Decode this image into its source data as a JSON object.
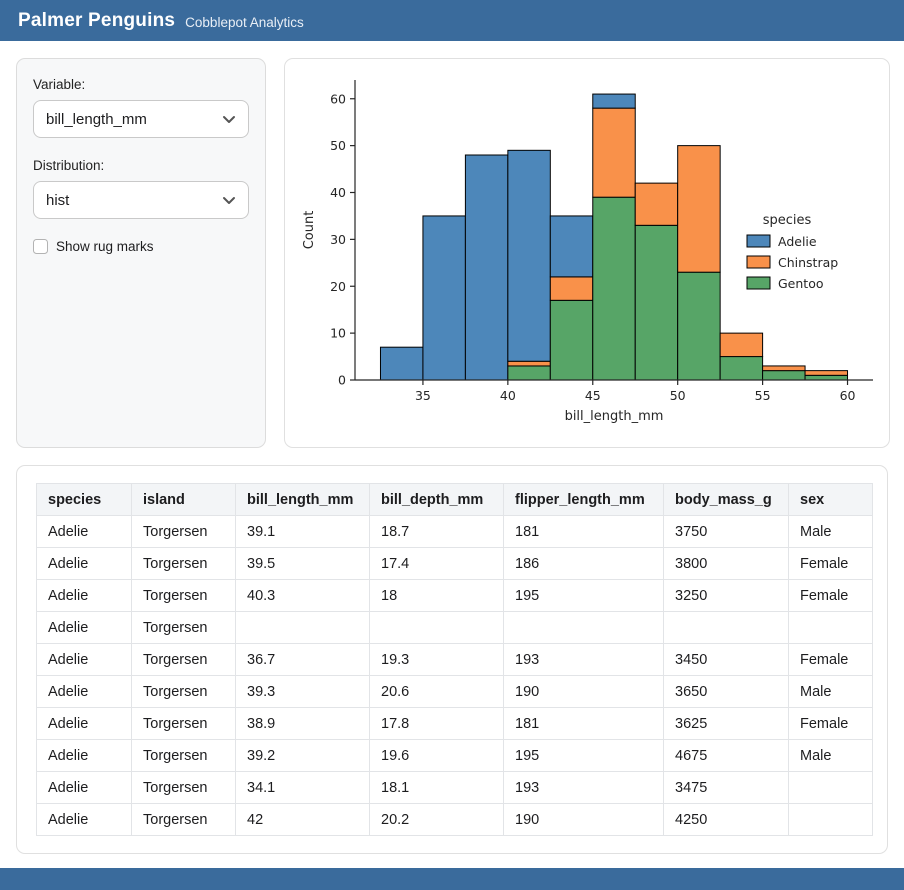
{
  "header": {
    "title": "Palmer Penguins",
    "subtitle": "Cobblepot Analytics"
  },
  "controls": {
    "variable_label": "Variable:",
    "variable_value": "bill_length_mm",
    "distribution_label": "Distribution:",
    "distribution_value": "hist",
    "rug_checkbox_label": "Show rug marks",
    "rug_checked": false
  },
  "chart_data": {
    "type": "bar",
    "subtype": "stacked-histogram",
    "xlabel": "bill_length_mm",
    "ylabel": "Count",
    "legend_title": "species",
    "legend_position": "right-inside",
    "bin_edges": [
      32.5,
      35,
      37.5,
      40,
      42.5,
      45,
      47.5,
      50,
      52.5,
      55,
      57.5,
      60
    ],
    "series": [
      {
        "name": "Adelie",
        "color": "#4d87ba",
        "values": [
          7,
          35,
          48,
          45,
          13,
          3,
          0,
          0,
          0,
          0,
          0
        ]
      },
      {
        "name": "Chinstrap",
        "color": "#f9914a",
        "values": [
          0,
          0,
          0,
          1,
          5,
          19,
          9,
          27,
          5,
          1,
          1
        ]
      },
      {
        "name": "Gentoo",
        "color": "#57a567",
        "values": [
          0,
          0,
          0,
          3,
          17,
          39,
          33,
          23,
          5,
          2,
          1
        ]
      }
    ],
    "stack_order": [
      "Gentoo",
      "Chinstrap",
      "Adelie"
    ],
    "x_ticks": [
      35,
      40,
      45,
      50,
      55,
      60
    ],
    "y_ticks": [
      0,
      10,
      20,
      30,
      40,
      50,
      60
    ],
    "xlim": [
      31,
      61.5
    ],
    "ylim": [
      0,
      64
    ],
    "bar_edge_color": "#000000",
    "grid": false
  },
  "table": {
    "columns": [
      "species",
      "island",
      "bill_length_mm",
      "bill_depth_mm",
      "flipper_length_mm",
      "body_mass_g",
      "sex"
    ],
    "rows": [
      [
        "Adelie",
        "Torgersen",
        "39.1",
        "18.7",
        "181",
        "3750",
        "Male"
      ],
      [
        "Adelie",
        "Torgersen",
        "39.5",
        "17.4",
        "186",
        "3800",
        "Female"
      ],
      [
        "Adelie",
        "Torgersen",
        "40.3",
        "18",
        "195",
        "3250",
        "Female"
      ],
      [
        "Adelie",
        "Torgersen",
        "",
        "",
        "",
        "",
        ""
      ],
      [
        "Adelie",
        "Torgersen",
        "36.7",
        "19.3",
        "193",
        "3450",
        "Female"
      ],
      [
        "Adelie",
        "Torgersen",
        "39.3",
        "20.6",
        "190",
        "3650",
        "Male"
      ],
      [
        "Adelie",
        "Torgersen",
        "38.9",
        "17.8",
        "181",
        "3625",
        "Female"
      ],
      [
        "Adelie",
        "Torgersen",
        "39.2",
        "19.6",
        "195",
        "4675",
        "Male"
      ],
      [
        "Adelie",
        "Torgersen",
        "34.1",
        "18.1",
        "193",
        "3475",
        ""
      ],
      [
        "Adelie",
        "Torgersen",
        "42",
        "20.2",
        "190",
        "4250",
        ""
      ]
    ]
  }
}
